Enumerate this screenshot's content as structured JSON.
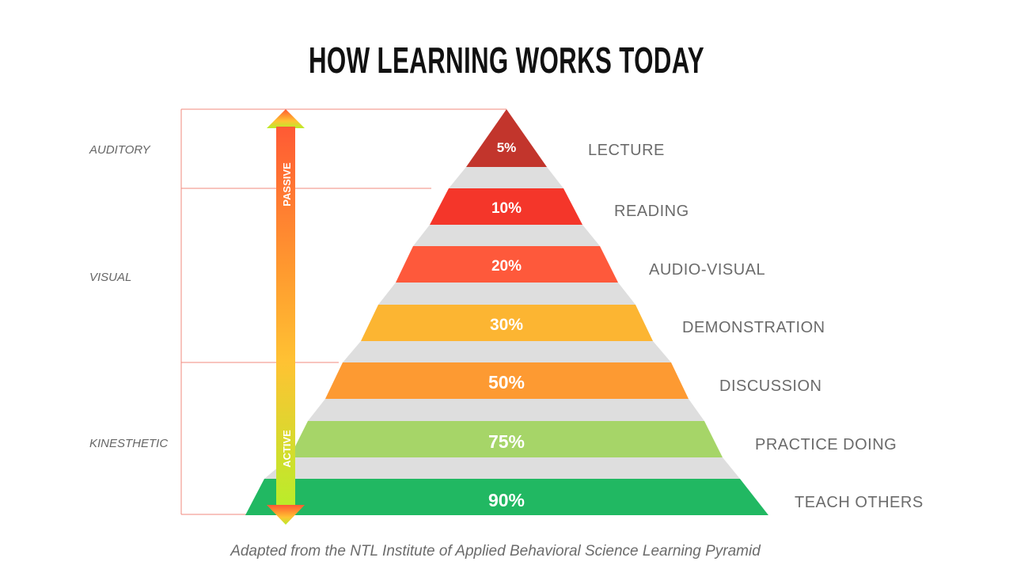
{
  "title": "HOW LEARNING WORKS TODAY",
  "caption": "Adapted from the NTL Institute of Applied Behavioral Science Learning Pyramid",
  "arrow": {
    "top_label": "PASSIVE",
    "bottom_label": "ACTIVE",
    "colors": [
      "#ff5a34",
      "#ff9a2f",
      "#ffc233",
      "#b9ed2a"
    ]
  },
  "learning_styles": [
    {
      "label": "AUDITORY"
    },
    {
      "label": "VISUAL"
    },
    {
      "label": "KINESTHETIC"
    }
  ],
  "levels": [
    {
      "percent": "5%",
      "label": "LECTURE",
      "color": "#c2352c"
    },
    {
      "percent": "10%",
      "label": "READING",
      "color": "#f4362a"
    },
    {
      "percent": "20%",
      "label": "AUDIO-VISUAL",
      "color": "#fe593b"
    },
    {
      "percent": "30%",
      "label": "DEMONSTRATION",
      "color": "#fcb532"
    },
    {
      "percent": "50%",
      "label": "DISCUSSION",
      "color": "#fd9a32"
    },
    {
      "percent": "75%",
      "label": "PRACTICE DOING",
      "color": "#a6d568"
    },
    {
      "percent": "90%",
      "label": "TEACH OTHERS",
      "color": "#21b862"
    }
  ],
  "colors": {
    "bracket_line": "#f08a7e",
    "shadow": "#dedede",
    "label_text": "#6b6b6b"
  }
}
